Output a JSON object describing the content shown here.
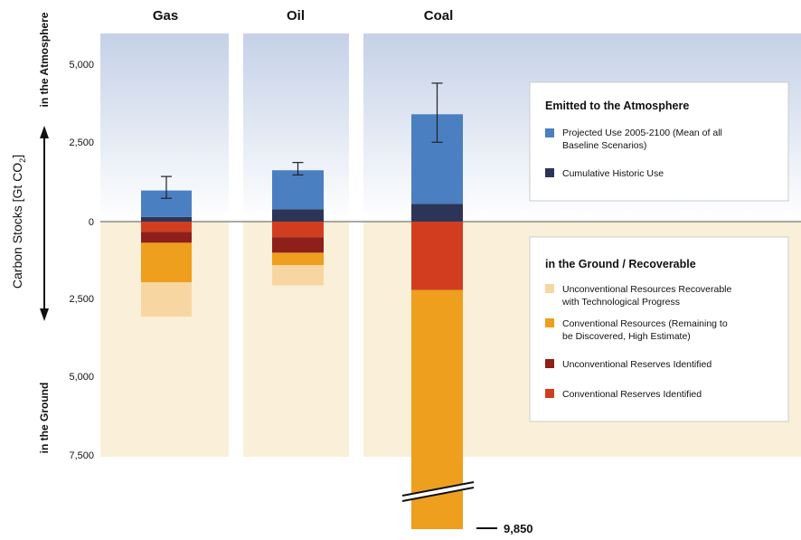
{
  "chart_data": {
    "type": "bar",
    "ylabel": "Carbon Stocks [Gt CO",
    "ylabel_subscript": "2",
    "ylabel_close": "]",
    "up_label": "in the Atmosphere",
    "down_label": "in the Ground",
    "ytick_labels_upper": [
      "5,000",
      "2,500",
      "0"
    ],
    "ytick_labels_lower": [
      "2,500",
      "5,000",
      "7,500"
    ],
    "ylim": [
      -7500,
      5000
    ],
    "panels": [
      {
        "name": "Gas",
        "above": [
          {
            "series": "Cumulative Historic Use",
            "value": 150
          },
          {
            "series": "Projected Use 2005-2100 (Mean of all Baseline Scenarios)",
            "value": 850
          }
        ],
        "error_bar": [
          750,
          1450
        ],
        "below": [
          {
            "series": "Conventional Reserves Identified",
            "value": 330
          },
          {
            "series": "Unconventional Reserves Identified",
            "value": 350
          },
          {
            "series": "Conventional Resources (Remaining to be Discovered, High Estimate)",
            "value": 1270
          },
          {
            "series": "Unconventional Resources Recoverable with Technological Progress",
            "value": 1100
          }
        ]
      },
      {
        "name": "Oil",
        "above": [
          {
            "series": "Cumulative Historic Use",
            "value": 400
          },
          {
            "series": "Projected Use 2005-2100 (Mean of all Baseline Scenarios)",
            "value": 1250
          }
        ],
        "error_bar": [
          1500,
          1900
        ],
        "below": [
          {
            "series": "Conventional Reserves Identified",
            "value": 500
          },
          {
            "series": "Unconventional Reserves Identified",
            "value": 500
          },
          {
            "series": "Conventional Resources (Remaining to be Discovered, High Estimate)",
            "value": 400
          },
          {
            "series": "Unconventional Resources Recoverable with Technological Progress",
            "value": 650
          }
        ]
      },
      {
        "name": "Coal",
        "above": [
          {
            "series": "Cumulative Historic Use",
            "value": 570
          },
          {
            "series": "Projected Use 2005-2100 (Mean of all Baseline Scenarios)",
            "value": 2880
          }
        ],
        "error_bar": [
          2550,
          4450
        ],
        "below": [
          {
            "series": "Conventional Reserves Identified",
            "value": 2200
          },
          {
            "series": "Conventional Resources (Remaining to be Discovered, High Estimate)",
            "value": 7650
          }
        ],
        "bottom_label": "9,850",
        "axis_break": true
      }
    ],
    "legend_atmosphere": {
      "title": "Emitted to the Atmosphere",
      "items": [
        {
          "lines": [
            "Projected Use 2005-2100 (Mean of all",
            "Baseline Scenarios)"
          ],
          "color": "#4a7fc1"
        },
        {
          "lines": [
            "Cumulative Historic Use"
          ],
          "color": "#2c3558"
        }
      ]
    },
    "legend_ground": {
      "title": "in the Ground  / Recoverable",
      "items": [
        {
          "lines": [
            "Unconventional Resources Recoverable",
            "with Technological Progress"
          ],
          "color": "#f8d6a2"
        },
        {
          "lines": [
            "Conventional Resources (Remaining to",
            "be Discovered, High Estimate)"
          ],
          "color": "#ee9f1e"
        },
        {
          "lines": [
            "Unconventional Reserves Identified"
          ],
          "color": "#8e1f1b"
        },
        {
          "lines": [
            "Conventional Reserves Identified"
          ],
          "color": "#d23d1f"
        }
      ]
    },
    "colors": {
      "Projected Use 2005-2100 (Mean of all Baseline Scenarios)": "#4a7fc1",
      "Cumulative Historic Use": "#2c3558",
      "Conventional Reserves Identified": "#d23d1f",
      "Unconventional Reserves Identified": "#8e1f1b",
      "Conventional Resources (Remaining to be Discovered, High Estimate)": "#ee9f1e",
      "Unconventional Resources Recoverable with Technological Progress": "#f8d6a2",
      "atmosphere_background_top": "#c7d3e8",
      "ground_background": "#faefd9"
    }
  }
}
